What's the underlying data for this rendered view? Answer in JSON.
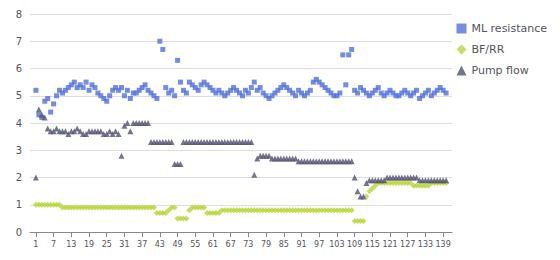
{
  "chart_data": {
    "type": "scatter",
    "xlim": [
      -1,
      142
    ],
    "xticks": [
      1,
      7,
      13,
      19,
      25,
      31,
      37,
      43,
      49,
      55,
      61,
      67,
      73,
      79,
      85,
      91,
      97,
      103,
      109,
      115,
      121,
      127,
      133,
      139
    ],
    "ylim": [
      0,
      8
    ],
    "yticks": [
      0,
      1,
      2,
      3,
      4,
      5,
      6,
      7,
      8
    ],
    "grid": true,
    "legend": "right",
    "x": [
      1,
      2,
      3,
      4,
      5,
      6,
      7,
      8,
      9,
      10,
      11,
      12,
      13,
      14,
      15,
      16,
      17,
      18,
      19,
      20,
      21,
      22,
      23,
      24,
      25,
      26,
      27,
      28,
      29,
      30,
      31,
      32,
      33,
      34,
      35,
      36,
      37,
      38,
      39,
      40,
      41,
      42,
      43,
      44,
      45,
      46,
      47,
      48,
      49,
      50,
      51,
      52,
      53,
      54,
      55,
      56,
      57,
      58,
      59,
      60,
      61,
      62,
      63,
      64,
      65,
      66,
      67,
      68,
      69,
      70,
      71,
      72,
      73,
      74,
      75,
      76,
      77,
      78,
      79,
      80,
      81,
      82,
      83,
      84,
      85,
      86,
      87,
      88,
      89,
      90,
      91,
      92,
      93,
      94,
      95,
      96,
      97,
      98,
      99,
      100,
      101,
      102,
      103,
      104,
      105,
      106,
      107,
      108,
      109,
      110,
      111,
      112,
      113,
      114,
      115,
      116,
      117,
      118,
      119,
      120,
      121,
      122,
      123,
      124,
      125,
      126,
      127,
      128,
      129,
      130,
      131,
      132,
      133,
      134,
      135,
      136,
      137,
      138,
      139,
      140
    ],
    "series": [
      {
        "name": "ML resistance",
        "marker": "square",
        "values": [
          5.2,
          4.3,
          4.2,
          4.8,
          4.9,
          4.4,
          4.7,
          5.0,
          5.2,
          5.1,
          5.2,
          5.3,
          5.4,
          5.5,
          5.3,
          5.4,
          5.3,
          5.5,
          5.2,
          5.4,
          5.3,
          5.1,
          5.0,
          4.9,
          4.8,
          5.0,
          5.2,
          5.3,
          5.2,
          5.3,
          5.0,
          5.2,
          4.9,
          5.1,
          5.1,
          5.2,
          5.3,
          5.4,
          5.2,
          5.1,
          5.0,
          4.9,
          7.0,
          6.7,
          5.3,
          5.1,
          5.2,
          5.0,
          6.3,
          5.5,
          5.2,
          5.1,
          5.5,
          5.4,
          5.3,
          5.2,
          5.4,
          5.5,
          5.4,
          5.3,
          5.2,
          5.1,
          5.2,
          5.1,
          5.0,
          5.1,
          5.2,
          5.3,
          5.2,
          5.1,
          5.0,
          5.2,
          5.1,
          5.3,
          5.5,
          5.2,
          5.3,
          5.1,
          5.0,
          4.9,
          5.0,
          5.1,
          5.2,
          5.3,
          5.4,
          5.3,
          5.2,
          5.1,
          5.0,
          5.2,
          5.1,
          5.0,
          5.1,
          5.2,
          5.5,
          5.6,
          5.5,
          5.4,
          5.3,
          5.2,
          5.1,
          5.0,
          5.0,
          5.1,
          6.5,
          5.4,
          6.5,
          6.7,
          5.2,
          5.1,
          5.3,
          5.2,
          5.1,
          5.0,
          5.1,
          5.2,
          5.3,
          5.1,
          5.0,
          5.1,
          5.2,
          5.1,
          5.0,
          5.0,
          5.1,
          5.2,
          5.1,
          5.0,
          5.1,
          5.2,
          4.9,
          5.0,
          5.1,
          5.2,
          5.0,
          5.1,
          5.2,
          5.3,
          5.2,
          5.1
        ]
      },
      {
        "name": "BF/RR",
        "marker": "diamond",
        "values": [
          1.0,
          1.0,
          1.0,
          1.0,
          1.0,
          1.0,
          1.0,
          1.0,
          1.0,
          0.9,
          0.9,
          0.9,
          0.9,
          0.9,
          0.9,
          0.9,
          0.9,
          0.9,
          0.9,
          0.9,
          0.9,
          0.9,
          0.9,
          0.9,
          0.9,
          0.9,
          0.9,
          0.9,
          0.9,
          0.9,
          0.9,
          0.9,
          0.9,
          0.9,
          0.9,
          0.9,
          0.9,
          0.9,
          0.9,
          0.9,
          0.9,
          0.7,
          0.7,
          0.7,
          0.7,
          0.8,
          0.9,
          0.9,
          0.5,
          0.5,
          0.5,
          0.5,
          0.8,
          0.9,
          0.9,
          0.9,
          0.9,
          0.9,
          0.7,
          0.7,
          0.7,
          0.7,
          0.7,
          0.8,
          0.8,
          0.8,
          0.8,
          0.8,
          0.8,
          0.8,
          0.8,
          0.8,
          0.8,
          0.8,
          0.8,
          0.8,
          0.8,
          0.8,
          0.8,
          0.8,
          0.8,
          0.8,
          0.8,
          0.8,
          0.8,
          0.8,
          0.8,
          0.8,
          0.8,
          0.8,
          0.8,
          0.8,
          0.8,
          0.8,
          0.8,
          0.8,
          0.8,
          0.8,
          0.8,
          0.8,
          0.8,
          0.8,
          0.8,
          0.8,
          0.8,
          0.8,
          0.8,
          0.8,
          0.4,
          0.4,
          0.4,
          0.4,
          1.3,
          1.5,
          1.6,
          1.7,
          1.8,
          1.8,
          1.8,
          1.8,
          1.8,
          1.8,
          1.8,
          1.8,
          1.8,
          1.8,
          1.8,
          1.8,
          1.7,
          1.7,
          1.7,
          1.7,
          1.7,
          1.7,
          1.8,
          1.8,
          1.8,
          1.8,
          1.8,
          1.8
        ]
      },
      {
        "name": "Pump flow",
        "marker": "triangle",
        "values": [
          2.0,
          4.5,
          4.3,
          4.2,
          3.8,
          3.7,
          3.7,
          3.8,
          3.7,
          3.7,
          3.7,
          3.6,
          3.7,
          3.7,
          3.8,
          3.7,
          3.6,
          3.6,
          3.7,
          3.7,
          3.7,
          3.7,
          3.7,
          3.6,
          3.6,
          3.7,
          3.6,
          3.7,
          3.6,
          2.8,
          3.9,
          4.0,
          3.7,
          4.0,
          4.0,
          4.0,
          4.0,
          4.0,
          4.0,
          3.3,
          3.3,
          3.3,
          3.3,
          3.3,
          3.3,
          3.3,
          3.3,
          2.5,
          2.5,
          2.5,
          3.3,
          3.3,
          3.3,
          3.3,
          3.3,
          3.3,
          3.3,
          3.3,
          3.3,
          3.3,
          3.3,
          3.3,
          3.3,
          3.3,
          3.3,
          3.3,
          3.3,
          3.3,
          3.3,
          3.3,
          3.3,
          3.3,
          3.3,
          3.3,
          2.1,
          2.7,
          2.8,
          2.8,
          2.8,
          2.8,
          2.7,
          2.7,
          2.7,
          2.7,
          2.7,
          2.7,
          2.7,
          2.7,
          2.7,
          2.6,
          2.6,
          2.6,
          2.6,
          2.6,
          2.6,
          2.6,
          2.6,
          2.6,
          2.6,
          2.6,
          2.6,
          2.6,
          2.6,
          2.6,
          2.6,
          2.6,
          2.6,
          2.6,
          2.0,
          1.5,
          1.3,
          1.3,
          1.8,
          1.9,
          1.9,
          1.9,
          1.9,
          1.9,
          1.9,
          2.0,
          2.0,
          2.0,
          2.0,
          2.0,
          2.0,
          2.0,
          2.0,
          2.0,
          2.0,
          2.0,
          1.9,
          1.9,
          1.9,
          1.9,
          1.9,
          1.9,
          1.9,
          1.9,
          1.9,
          1.9
        ]
      }
    ]
  }
}
